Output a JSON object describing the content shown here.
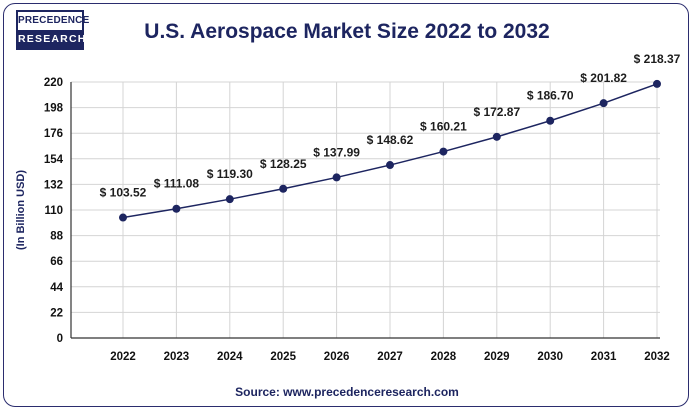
{
  "logo": {
    "line1": "PRECEDENCE",
    "line2": "RESEARCH"
  },
  "source": "Source: www.precedenceresearch.com",
  "chart_data": {
    "type": "line",
    "title": "U.S. Aerospace Market Size 2022 to 2032",
    "xlabel": "",
    "ylabel": "(In Billion USD)",
    "ylim": [
      0,
      220
    ],
    "yticks": [
      0,
      22,
      44,
      66,
      88,
      110,
      132,
      154,
      176,
      198,
      220
    ],
    "categories": [
      "2022",
      "2023",
      "2024",
      "2025",
      "2026",
      "2027",
      "2028",
      "2029",
      "2030",
      "2031",
      "2032"
    ],
    "series": [
      {
        "values": [
          103.52,
          111.08,
          119.3,
          128.25,
          137.99,
          148.62,
          160.21,
          172.87,
          186.7,
          201.82,
          218.37
        ],
        "labels": [
          "$ 103.52",
          "$ 111.08",
          "$ 119.30",
          "$ 128.25",
          "$ 137.99",
          "$ 148.62",
          "$ 160.21",
          "$ 172.87",
          "$ 186.70",
          "$ 201.82",
          "$ 218.37"
        ],
        "color": "#1d2560"
      }
    ],
    "grid": true
  }
}
